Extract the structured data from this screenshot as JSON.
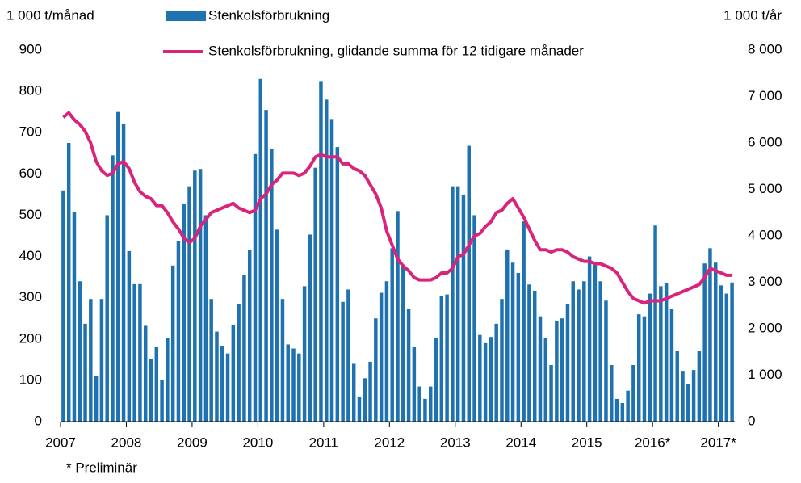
{
  "chart_data": {
    "type": "bar_line",
    "y_label": "1 000 t/månad",
    "y2_label": "1 000 t/år",
    "note": "* Preliminär",
    "categories": [
      "2007",
      null,
      null,
      null,
      null,
      null,
      null,
      null,
      null,
      null,
      null,
      null,
      "2008",
      null,
      null,
      null,
      null,
      null,
      null,
      null,
      null,
      null,
      null,
      null,
      "2009",
      null,
      null,
      null,
      null,
      null,
      null,
      null,
      null,
      null,
      null,
      null,
      "2010",
      null,
      null,
      null,
      null,
      null,
      null,
      null,
      null,
      null,
      null,
      null,
      "2011",
      null,
      null,
      null,
      null,
      null,
      null,
      null,
      null,
      null,
      null,
      null,
      "2012",
      null,
      null,
      null,
      null,
      null,
      null,
      null,
      null,
      null,
      null,
      null,
      "2013",
      null,
      null,
      null,
      null,
      null,
      null,
      null,
      null,
      null,
      null,
      null,
      "2014",
      null,
      null,
      null,
      null,
      null,
      null,
      null,
      null,
      null,
      null,
      null,
      "2015",
      null,
      null,
      null,
      null,
      null,
      null,
      null,
      null,
      null,
      null,
      null,
      "2016*",
      null,
      null,
      null,
      null,
      null,
      null,
      null,
      null,
      null,
      null,
      null,
      "2017*",
      null,
      null
    ],
    "series": [
      {
        "name": "Stenkolsförbrukning",
        "type": "bar",
        "color": "#1f72b0",
        "values": [
          560,
          675,
          507,
          340,
          237,
          297,
          110,
          297,
          500,
          645,
          750,
          720,
          413,
          333,
          333,
          232,
          152,
          180,
          100,
          203,
          378,
          437,
          527,
          570,
          608,
          612,
          500,
          297,
          218,
          183,
          165,
          235,
          285,
          355,
          415,
          648,
          830,
          755,
          660,
          465,
          297,
          187,
          177,
          165,
          328,
          453,
          615,
          825,
          780,
          733,
          665,
          290,
          320,
          140,
          60,
          105,
          145,
          250,
          312,
          340,
          420,
          510,
          380,
          273,
          180,
          85,
          55,
          85,
          203,
          305,
          308,
          570,
          570,
          550,
          668,
          500,
          210,
          190,
          205,
          237,
          297,
          417,
          385,
          360,
          485,
          332,
          317,
          255,
          202,
          137,
          243,
          250,
          285,
          340,
          320,
          340,
          400,
          380,
          340,
          293,
          137,
          55,
          45,
          75,
          137,
          260,
          255,
          310,
          475,
          328,
          335,
          273,
          172,
          123,
          90,
          125,
          172,
          383,
          420,
          385,
          330,
          310,
          337
        ]
      },
      {
        "name": "Stenkolsförbrukning, glidande summa för 12 tidigare månader",
        "type": "line",
        "axis": "y2",
        "color": "#d9247c",
        "values": [
          6550,
          6650,
          6500,
          6400,
          6250,
          6000,
          5600,
          5400,
          5300,
          5350,
          5550,
          5600,
          5450,
          5150,
          4950,
          4850,
          4800,
          4650,
          4650,
          4500,
          4300,
          4150,
          3950,
          3850,
          3950,
          4200,
          4350,
          4500,
          4550,
          4600,
          4650,
          4700,
          4600,
          4550,
          4500,
          4550,
          4800,
          4900,
          5100,
          5200,
          5350,
          5350,
          5350,
          5300,
          5350,
          5500,
          5700,
          5750,
          5700,
          5700,
          5700,
          5550,
          5550,
          5450,
          5400,
          5300,
          5100,
          4900,
          4600,
          4100,
          3800,
          3500,
          3350,
          3250,
          3100,
          3050,
          3050,
          3050,
          3100,
          3200,
          3200,
          3300,
          3550,
          3600,
          3800,
          4000,
          4050,
          4200,
          4300,
          4500,
          4550,
          4700,
          4800,
          4600,
          4400,
          4150,
          3900,
          3700,
          3700,
          3650,
          3700,
          3700,
          3650,
          3550,
          3500,
          3450,
          3450,
          3400,
          3400,
          3350,
          3300,
          3200,
          3000,
          2800,
          2650,
          2600,
          2550,
          2600,
          2600,
          2600,
          2650,
          2700,
          2750,
          2800,
          2850,
          2900,
          2950,
          3100,
          3300,
          3250,
          3200,
          3150,
          3150
        ]
      }
    ],
    "ylim": [
      0,
      900
    ],
    "yticks": [
      0,
      100,
      200,
      300,
      400,
      500,
      600,
      700,
      800,
      900
    ],
    "y2lim": [
      0,
      8000
    ],
    "y2ticks": [
      0,
      {
        "value": 1000,
        "label": "1 000"
      },
      {
        "value": 2000,
        "label": "2 000"
      },
      {
        "value": 3000,
        "label": "3 000"
      },
      {
        "value": 4000,
        "label": "4 000"
      },
      {
        "value": 5000,
        "label": "5 000"
      },
      {
        "value": 6000,
        "label": "6 000"
      },
      {
        "value": 7000,
        "label": "7 000"
      },
      {
        "value": 8000,
        "label": "8 000"
      }
    ],
    "grid": false
  }
}
